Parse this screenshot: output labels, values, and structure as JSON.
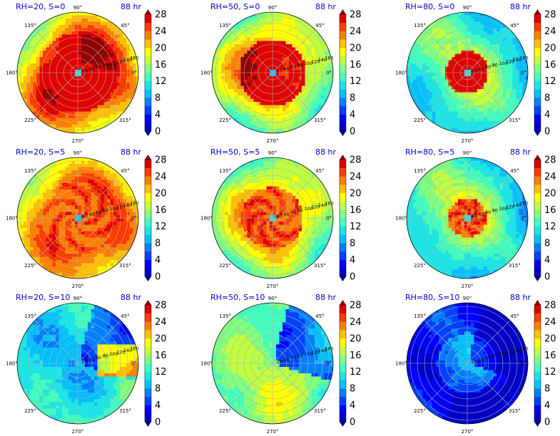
{
  "chart_data": [
    {
      "type": "heatmap",
      "title_left": "RH=20, S=0",
      "title_right": "88 hr",
      "pattern": "hurricane-eye"
    },
    {
      "type": "heatmap",
      "title_left": "RH=50, S=0",
      "title_right": "88 hr",
      "pattern": "hurricane-eye"
    },
    {
      "type": "heatmap",
      "title_left": "RH=80, S=0",
      "title_right": "88 hr",
      "pattern": "hurricane-eye"
    },
    {
      "type": "heatmap",
      "title_left": "RH=20, S=5",
      "title_right": "88 hr",
      "pattern": "hurricane-eye"
    },
    {
      "type": "heatmap",
      "title_left": "RH=50, S=5",
      "title_right": "88 hr",
      "pattern": "hurricane-eye"
    },
    {
      "type": "heatmap",
      "title_left": "RH=80, S=5",
      "title_right": "88 hr",
      "pattern": "hurricane-eye"
    },
    {
      "type": "heatmap",
      "title_left": "RH=20, S=10",
      "title_right": "88 hr",
      "pattern": "sheared"
    },
    {
      "type": "heatmap",
      "title_left": "RH=50, S=10",
      "title_right": "88 hr",
      "pattern": "sheared"
    },
    {
      "type": "heatmap",
      "title_left": "RH=80, S=10",
      "title_right": "88 hr",
      "pattern": "sheared"
    }
  ],
  "polar": {
    "angle_labels": [
      "90°",
      "45°",
      "0°",
      "315°",
      "270°",
      "225°",
      "180°",
      "135°"
    ],
    "radial_labels": [
      "20",
      "40",
      "60",
      "80",
      "100",
      "120",
      "140",
      "160"
    ]
  },
  "colorbar": {
    "ticks": [
      "0",
      "4",
      "8",
      "12",
      "16",
      "20",
      "24",
      "28"
    ],
    "levels": [
      0,
      2,
      4,
      6,
      8,
      10,
      12,
      14,
      16,
      18,
      20,
      22,
      24,
      26,
      28
    ],
    "colors": [
      "#00008f",
      "#0000c8",
      "#0000ff",
      "#0040ff",
      "#0080ff",
      "#00c0ff",
      "#19e6e6",
      "#40ffbf",
      "#80ff80",
      "#c0ff40",
      "#ffff00",
      "#ffc000",
      "#ff8000",
      "#ff3c00",
      "#e00000",
      "#900000"
    ]
  }
}
